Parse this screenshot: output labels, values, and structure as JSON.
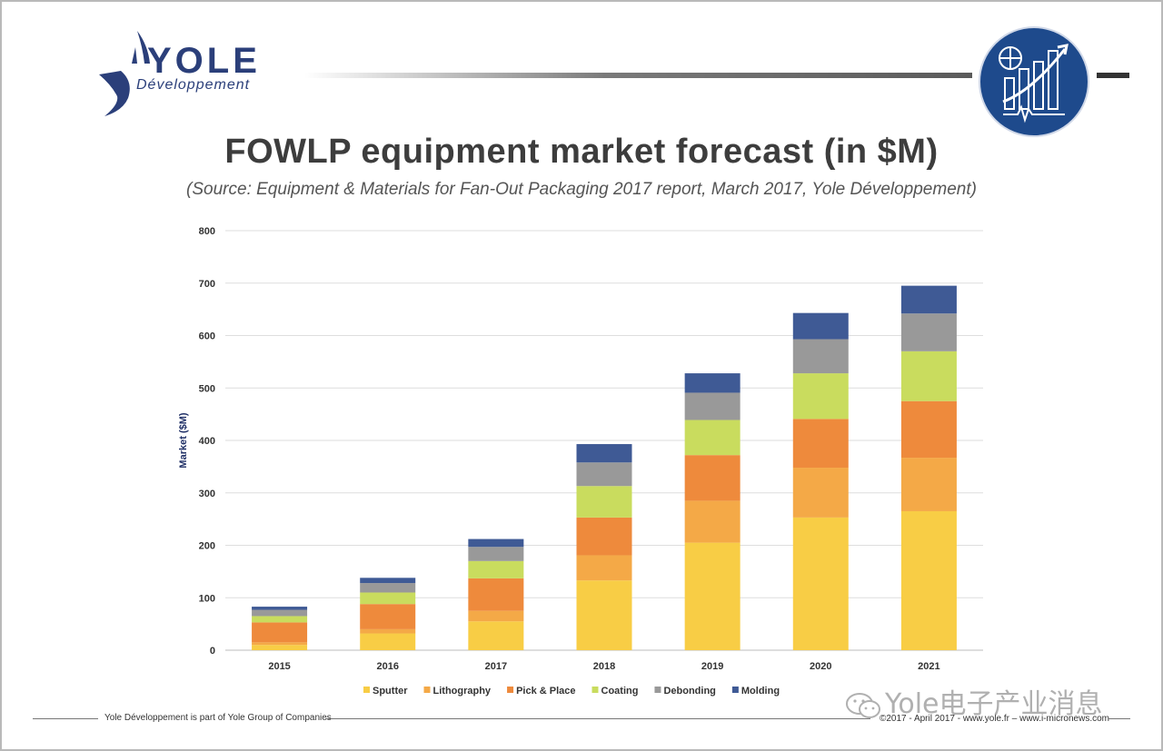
{
  "brand": {
    "name": "YOLE",
    "tagline": "Développement",
    "colors": {
      "navy": "#2b3f7a",
      "emblem": "#1e4a8c"
    }
  },
  "header": {
    "title": "FOWLP equipment market forecast (in $M)",
    "source": "(Source: Equipment & Materials for Fan-Out Packaging 2017 report, March 2017, Yole Développement)"
  },
  "chart_data": {
    "type": "bar",
    "stacked": true,
    "categories": [
      "2015",
      "2016",
      "2017",
      "2018",
      "2019",
      "2020",
      "2021"
    ],
    "ylabel": "Market ($M)",
    "xlabel": "",
    "ylim": [
      0,
      800
    ],
    "yticks": [
      0,
      100,
      200,
      300,
      400,
      500,
      600,
      700,
      800
    ],
    "grid": true,
    "legend_position": "bottom",
    "series": [
      {
        "name": "Sputter",
        "color": "#f8cd45",
        "values": [
          10,
          32,
          55,
          133,
          205,
          253,
          265
        ]
      },
      {
        "name": "Lithography",
        "color": "#f4a947",
        "values": [
          5,
          8,
          20,
          48,
          80,
          95,
          102
        ]
      },
      {
        "name": "Pick & Place",
        "color": "#ee8a3c",
        "values": [
          38,
          48,
          62,
          72,
          87,
          93,
          108
        ]
      },
      {
        "name": "Coating",
        "color": "#c9dc5e",
        "values": [
          12,
          22,
          33,
          60,
          67,
          87,
          95
        ]
      },
      {
        "name": "Debonding",
        "color": "#999999",
        "values": [
          12,
          18,
          27,
          45,
          52,
          65,
          72
        ]
      },
      {
        "name": "Molding",
        "color": "#3f5a95",
        "values": [
          6,
          10,
          15,
          35,
          37,
          50,
          53
        ]
      }
    ]
  },
  "footer": {
    "left": "Yole Développement is part of Yole Group of Companies",
    "right": "©2017 - April 2017 - www.yole.fr – www.i-micronews.com",
    "watermark": "Yole电子产业消息"
  }
}
